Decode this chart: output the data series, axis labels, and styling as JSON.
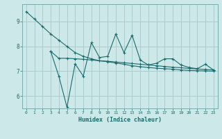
{
  "title": "",
  "xlabel": "Humidex (Indice chaleur)",
  "bg_color": "#cce8e8",
  "grid_color": "#aacccc",
  "line_color": "#1a6b6b",
  "xmin": -0.5,
  "xmax": 23.5,
  "ymin": 5.5,
  "ymax": 9.7,
  "yticks": [
    6,
    7,
    8,
    9
  ],
  "xticks": [
    0,
    1,
    2,
    3,
    4,
    5,
    6,
    7,
    8,
    9,
    10,
    11,
    12,
    13,
    14,
    15,
    16,
    17,
    18,
    19,
    20,
    21,
    22,
    23
  ],
  "line1_x": [
    0,
    1,
    2,
    3,
    4,
    5,
    6,
    7,
    8,
    9,
    10,
    11,
    12,
    13,
    14,
    15,
    16,
    17,
    18,
    19,
    20,
    21,
    22,
    23
  ],
  "line1_y": [
    9.4,
    9.1,
    8.8,
    8.5,
    8.25,
    8.0,
    7.75,
    7.6,
    7.5,
    7.42,
    7.38,
    7.33,
    7.28,
    7.22,
    7.18,
    7.15,
    7.12,
    7.1,
    7.08,
    7.05,
    7.03,
    7.02,
    7.01,
    7.0
  ],
  "line2_x": [
    3,
    4,
    5,
    6,
    7,
    8,
    9,
    10,
    11,
    12,
    13,
    14,
    15,
    16,
    17,
    18,
    19,
    20,
    21,
    22,
    23
  ],
  "line2_y": [
    7.8,
    7.52,
    7.52,
    7.5,
    7.48,
    7.45,
    7.42,
    7.4,
    7.37,
    7.34,
    7.31,
    7.28,
    7.25,
    7.22,
    7.19,
    7.16,
    7.14,
    7.11,
    7.09,
    7.07,
    7.05
  ],
  "line3_x": [
    3,
    4,
    5,
    6,
    7,
    8,
    9,
    10,
    11,
    12,
    13,
    14,
    15,
    16,
    17,
    18,
    19,
    20,
    21,
    22,
    23
  ],
  "line3_y": [
    7.8,
    6.8,
    5.55,
    7.3,
    6.8,
    8.15,
    7.55,
    7.6,
    8.5,
    7.75,
    8.45,
    7.45,
    7.25,
    7.32,
    7.5,
    7.5,
    7.25,
    7.15,
    7.1,
    7.28,
    7.05
  ]
}
